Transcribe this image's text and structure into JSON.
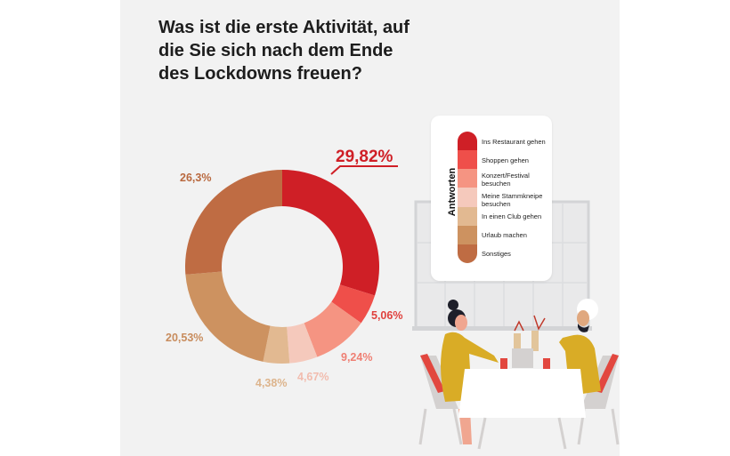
{
  "title": "Was ist die erste Aktivität, auf die Sie sich nach dem Ende des Lockdowns freuen?",
  "legend": {
    "title": "Antworten"
  },
  "chart_data": {
    "type": "pie",
    "variant": "donut",
    "title": "Was ist die erste Aktivität, auf die Sie sich nach dem Ende des Lockdowns freuen?",
    "legend_title": "Antworten",
    "legend_placement": "right",
    "unit": "%",
    "categories": [
      "Ins Restaurant gehen",
      "Shoppen gehen",
      "Konzert/Festival besuchen",
      "Meine Stammkneipe besuchen",
      "In einen Club gehen",
      "Urlaub machen",
      "Sonstiges"
    ],
    "values": [
      29.82,
      5.06,
      9.24,
      4.67,
      4.38,
      20.53,
      26.3
    ],
    "labels": [
      "29,82%",
      "5,06%",
      "9,24%",
      "4,67%",
      "4,38%",
      "20,53%",
      "26,3%"
    ],
    "colors": [
      "#cf1f26",
      "#ef4f4a",
      "#f59482",
      "#f5c9bc",
      "#e2b991",
      "#cd9260",
      "#bf6c43"
    ],
    "label_colors": [
      "#cf1f26",
      "#e0413d",
      "#ef7f73",
      "#f2bcae",
      "#ddb48c",
      "#c88c5d",
      "#b9693f"
    ]
  }
}
